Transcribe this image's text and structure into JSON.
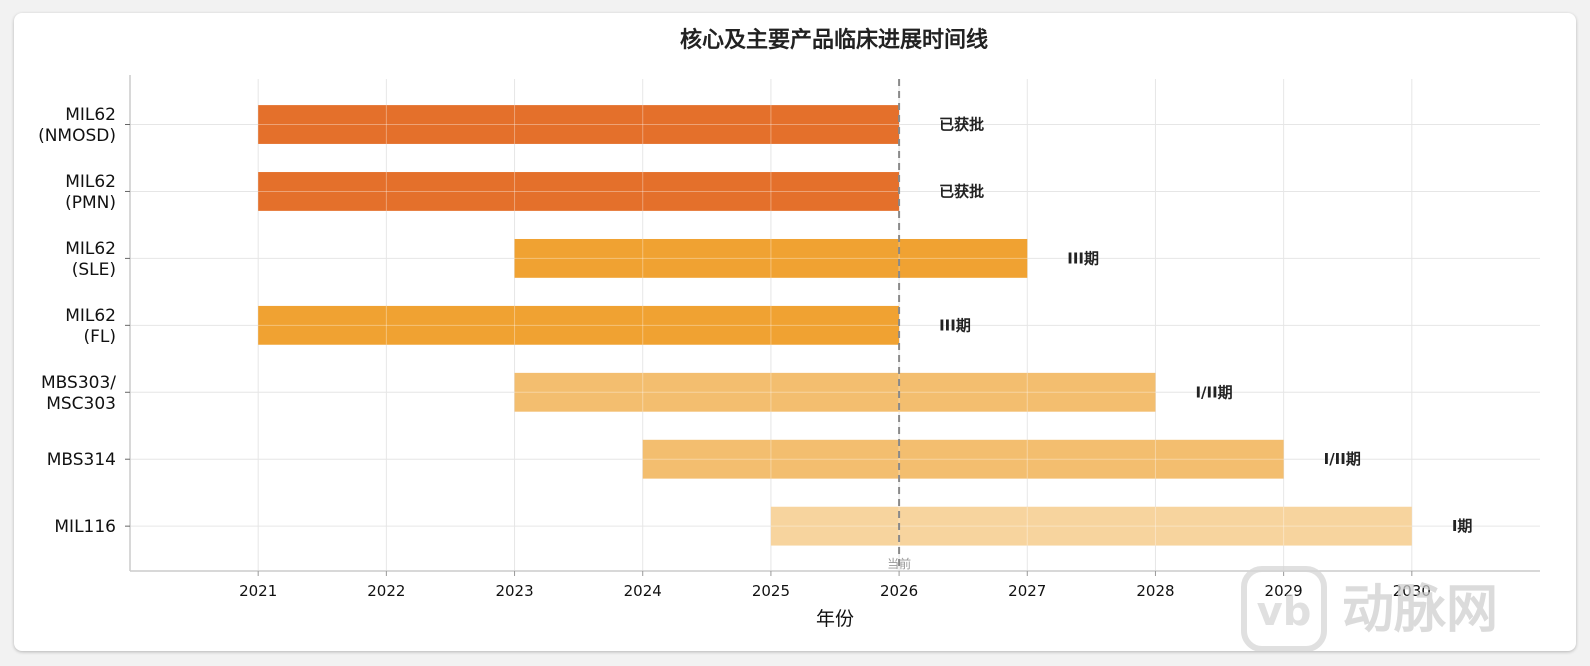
{
  "chart_data": {
    "type": "bar",
    "orientation": "horizontal",
    "title": "核心及主要产品临床进展时间线",
    "xlabel": "年份",
    "ylabel": "",
    "xlim": [
      2020.0,
      2031.0
    ],
    "xticks": [
      2021,
      2022,
      2023,
      2024,
      2025,
      2026,
      2027,
      2028,
      2029,
      2030
    ],
    "grid": true,
    "reference_line": {
      "x": 2026,
      "label": "当前",
      "color": "#999999"
    },
    "bars": [
      {
        "label": [
          "MIL62",
          "(NMOSD)"
        ],
        "start": 2021,
        "end": 2026,
        "status": "已获批",
        "color": "#e4702b"
      },
      {
        "label": [
          "MIL62",
          "(PMN)"
        ],
        "start": 2021,
        "end": 2026,
        "status": "已获批",
        "color": "#e4702b"
      },
      {
        "label": [
          "MIL62",
          "(SLE)"
        ],
        "start": 2023,
        "end": 2027,
        "status": "III期",
        "color": "#f0a232"
      },
      {
        "label": [
          "MIL62",
          "(FL)"
        ],
        "start": 2021,
        "end": 2026,
        "status": "III期",
        "color": "#f0a232"
      },
      {
        "label": [
          "MBS303/",
          "MSC303"
        ],
        "start": 2023,
        "end": 2028,
        "status": "I/II期",
        "color": "#f3be6f"
      },
      {
        "label": [
          "MBS314"
        ],
        "start": 2024,
        "end": 2029,
        "status": "I/II期",
        "color": "#f3be6f"
      },
      {
        "label": [
          "MIL116"
        ],
        "start": 2025,
        "end": 2030,
        "status": "I期",
        "color": "#f7d49e"
      }
    ]
  },
  "watermark": {
    "text": "动脉网",
    "icon": "vb-logo-icon"
  }
}
